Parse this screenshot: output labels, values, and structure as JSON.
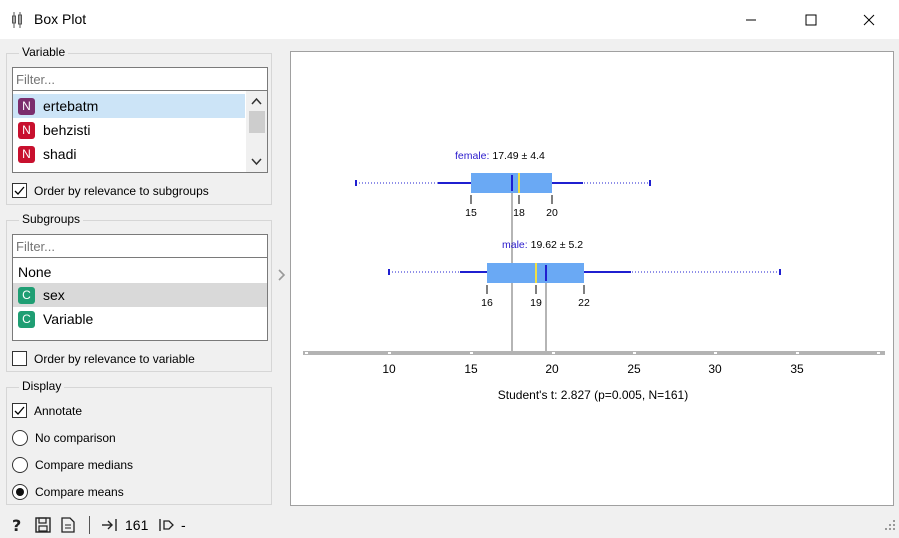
{
  "window": {
    "title": "Box Plot",
    "controls": [
      "minimize-icon",
      "maximize-icon",
      "close-icon"
    ]
  },
  "variable_box": {
    "title": "Variable",
    "filter_placeholder": "Filter...",
    "items": [
      {
        "badge": "N",
        "label": "ertebatm",
        "selected": true,
        "color": "#7b2d6d"
      },
      {
        "badge": "N",
        "label": "behzisti",
        "selected": false,
        "color": "#c8102e"
      },
      {
        "badge": "N",
        "label": "shadi",
        "selected": false,
        "color": "#c8102e"
      }
    ],
    "order_checkbox": {
      "label": "Order by relevance to subgroups",
      "checked": true
    }
  },
  "subgroups_box": {
    "title": "Subgroups",
    "filter_placeholder": "Filter...",
    "items": [
      {
        "badge": "",
        "label": "None",
        "selected": false
      },
      {
        "badge": "C",
        "label": "sex",
        "selected": true,
        "color": "#1f9e73"
      },
      {
        "badge": "C",
        "label": "Variable",
        "selected": false,
        "color": "#1f9e73"
      }
    ],
    "order_checkbox": {
      "label": "Order by relevance to variable",
      "checked": false
    }
  },
  "display_box": {
    "title": "Display",
    "annotate": {
      "label": "Annotate",
      "checked": true
    },
    "radios": [
      {
        "label": "No comparison",
        "checked": false
      },
      {
        "label": "Compare medians",
        "checked": false
      },
      {
        "label": "Compare means",
        "checked": true
      }
    ]
  },
  "plot": {
    "groups": [
      {
        "name": "female",
        "stat": "17.49 ± 4.4",
        "ticks": [
          "15",
          "18",
          "20"
        ]
      },
      {
        "name": "male",
        "stat": "19.62 ± 5.2",
        "ticks": [
          "16",
          "19",
          "22"
        ]
      }
    ],
    "axis_ticks": [
      "10",
      "15",
      "20",
      "25",
      "30",
      "35"
    ],
    "test_text": "Student's t: 2.827 (p=0.005, N=161)",
    "colors": {
      "box": "#6aa9f4",
      "whisker": "#1f1fd0",
      "median": "#f0e046",
      "mean": "#1f1fd0",
      "name": "#2a1acc"
    }
  },
  "statusbar": {
    "input_count": "161",
    "output_count": "-"
  }
}
